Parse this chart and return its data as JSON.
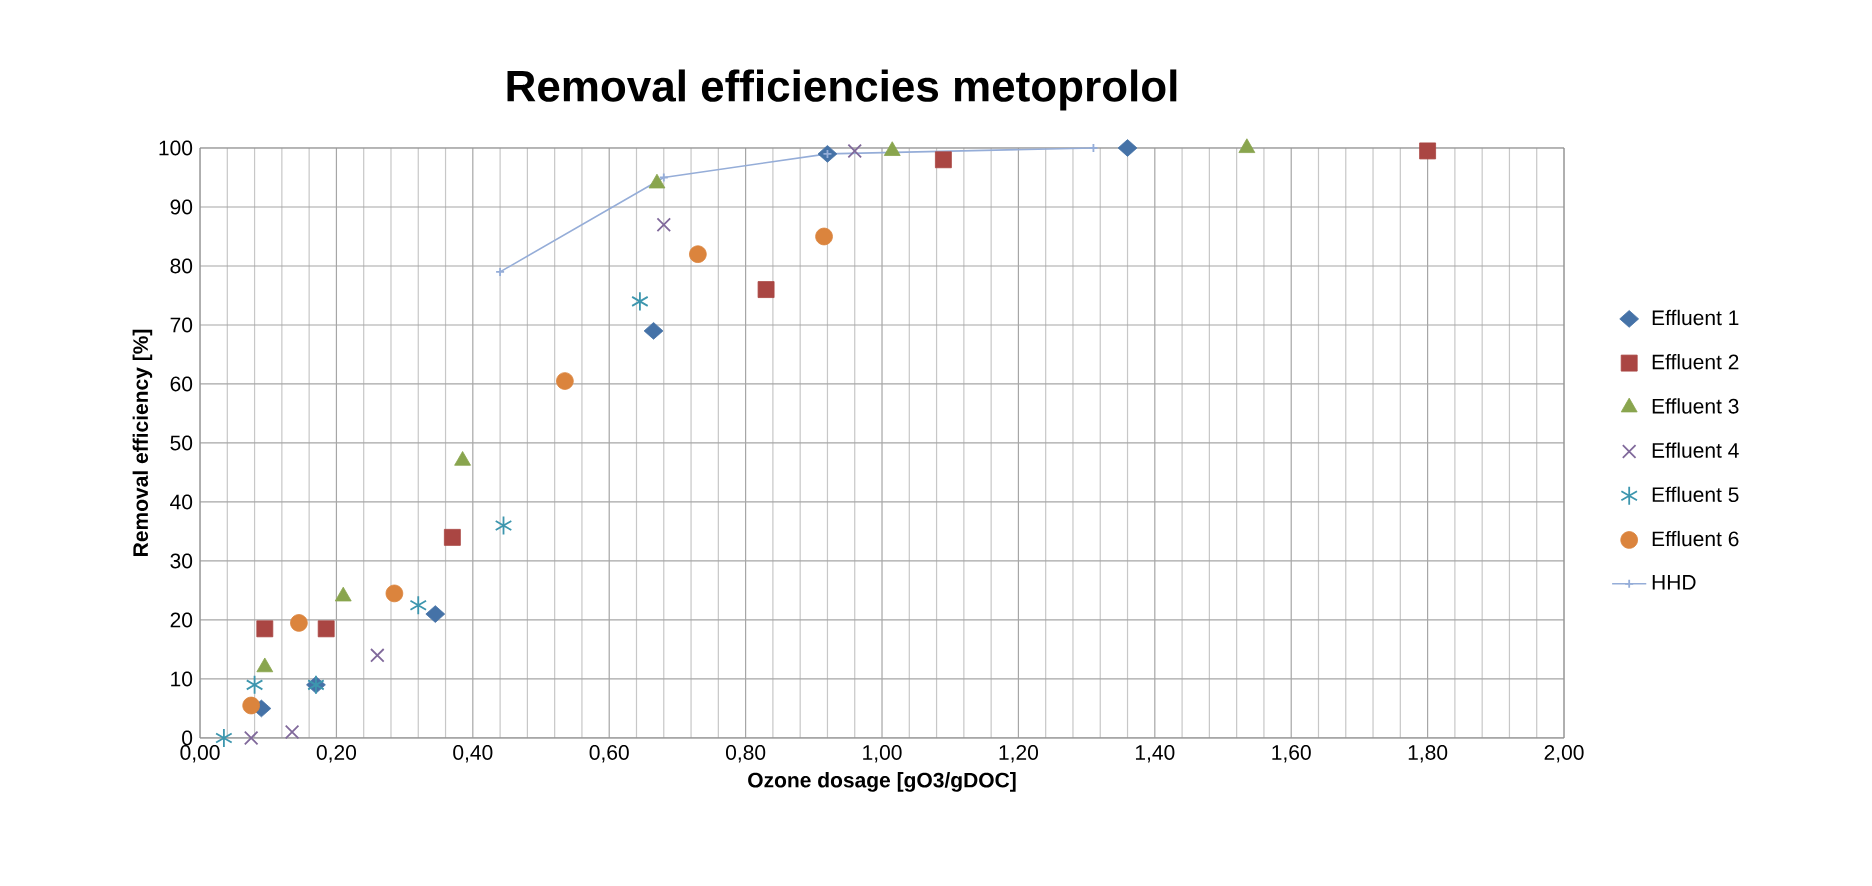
{
  "chart_data": {
    "type": "scatter",
    "title": "Removal efficiencies metoprolol",
    "xlabel": "Ozone dosage [gO3/gDOC]",
    "ylabel": "Removal efficiency [%]",
    "xlim": [
      0,
      2
    ],
    "ylim": [
      0,
      100
    ],
    "xticks": [
      {
        "value": 0,
        "label": "0,00"
      },
      {
        "value": 0.2,
        "label": "0,20"
      },
      {
        "value": 0.4,
        "label": "0,40"
      },
      {
        "value": 0.6,
        "label": "0,60"
      },
      {
        "value": 0.8,
        "label": "0,80"
      },
      {
        "value": 1.0,
        "label": "1,00"
      },
      {
        "value": 1.2,
        "label": "1,20"
      },
      {
        "value": 1.4,
        "label": "1,40"
      },
      {
        "value": 1.6,
        "label": "1,60"
      },
      {
        "value": 1.8,
        "label": "1,80"
      },
      {
        "value": 2.0,
        "label": "2,00"
      }
    ],
    "yticks": [
      0,
      10,
      20,
      30,
      40,
      50,
      60,
      70,
      80,
      90,
      100
    ],
    "grid": true,
    "legend": "right",
    "series": [
      {
        "name": "Effluent 1",
        "color": "#4572a7",
        "marker": "diamond",
        "x": [
          0.09,
          0.17,
          0.345,
          0.665,
          0.92,
          1.36
        ],
        "values": [
          5,
          9,
          21,
          69,
          99,
          100
        ]
      },
      {
        "name": "Effluent 2",
        "color": "#aa4643",
        "marker": "square",
        "x": [
          0.095,
          0.185,
          0.37,
          0.83,
          1.09,
          1.8
        ],
        "values": [
          18.5,
          18.5,
          34,
          76,
          98,
          99.5
        ]
      },
      {
        "name": "Effluent 3",
        "color": "#89a54e",
        "marker": "triangle",
        "x": [
          0.095,
          0.21,
          0.385,
          0.67,
          1.015,
          1.535
        ],
        "values": [
          12,
          24,
          47,
          94,
          99.5,
          100
        ]
      },
      {
        "name": "Effluent 4",
        "color": "#80699b",
        "marker": "cross",
        "x": [
          0.075,
          0.135,
          0.26,
          0.68,
          0.96
        ],
        "values": [
          0,
          1,
          14,
          87,
          99.5
        ]
      },
      {
        "name": "Effluent 5",
        "color": "#3d96ae",
        "marker": "cross",
        "x": [
          0.035,
          0.08,
          0.17,
          0.32,
          0.445,
          0.645
        ],
        "values": [
          0,
          9,
          9,
          22.5,
          36,
          74
        ]
      },
      {
        "name": "Effluent 6",
        "color": "#db843d",
        "marker": "circle",
        "x": [
          0.075,
          0.145,
          0.285,
          0.535,
          0.73,
          0.915
        ],
        "values": [
          5.5,
          19.5,
          24.5,
          60.5,
          82,
          85
        ]
      },
      {
        "name": "HHD",
        "type": "line",
        "color": "#95add8",
        "marker": "cross",
        "line_style": "solid",
        "x": [
          0.44,
          0.68,
          0.92,
          1.31
        ],
        "values": [
          79,
          95,
          99,
          100
        ]
      }
    ]
  }
}
